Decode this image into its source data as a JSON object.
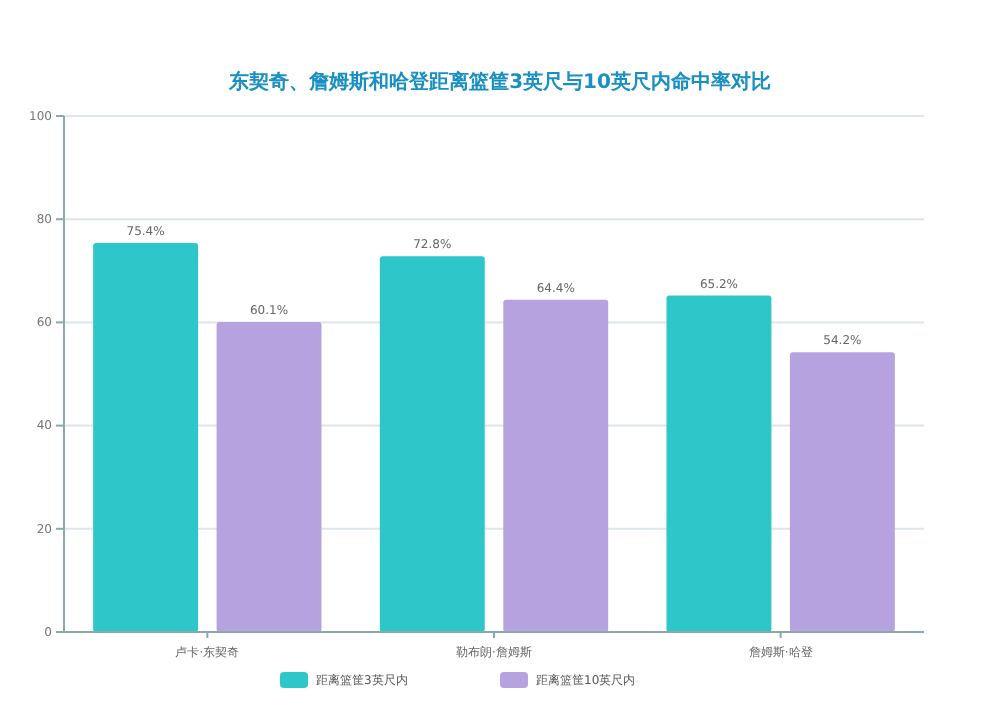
{
  "chart_data": {
    "type": "bar",
    "title": "东契奇、詹姆斯和哈登距离篮筐3英尺与10英尺内命中率对比",
    "categories": [
      "卢卡·东契奇",
      "勒布朗·詹姆斯",
      "詹姆斯·哈登"
    ],
    "series": [
      {
        "name": "距离篮筐3英尺内",
        "color": "#2ec7c9",
        "values": [
          75.4,
          72.8,
          65.2
        ],
        "value_labels": [
          "75.4%",
          "72.8%",
          "65.2%"
        ]
      },
      {
        "name": "距离篮筐10英尺内",
        "color": "#b6a2de",
        "values": [
          60.1,
          64.4,
          54.2
        ],
        "value_labels": [
          "60.1%",
          "64.4%",
          "54.2%"
        ]
      }
    ],
    "ylim": [
      0,
      100
    ],
    "yticks": [
      0,
      20,
      40,
      60,
      80,
      100
    ],
    "grid": "y",
    "legend": "bottom"
  }
}
